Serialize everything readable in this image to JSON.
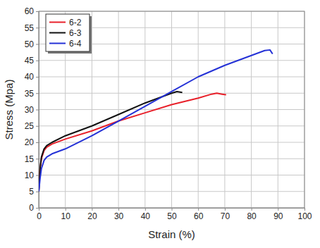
{
  "chart_data": {
    "type": "line",
    "x_label": "Strain (%)",
    "y_label": "Stress (Mpa)",
    "xlim": [
      0,
      100
    ],
    "ylim": [
      0,
      60
    ],
    "xticks": [
      0,
      10,
      20,
      30,
      40,
      50,
      60,
      70,
      80,
      90,
      100
    ],
    "yticks": [
      0,
      5,
      10,
      15,
      20,
      25,
      30,
      35,
      40,
      45,
      50,
      55,
      60
    ],
    "grid": true,
    "legend": "upper left",
    "series": [
      {
        "name": "6-2",
        "color": "#e8202a",
        "x": [
          0,
          0.5,
          1,
          2,
          3,
          5,
          10,
          20,
          30,
          40,
          50,
          60,
          65,
          67,
          69,
          70.5
        ],
        "values": [
          5,
          12,
          15,
          17.5,
          18.5,
          19.5,
          21,
          23.5,
          26.5,
          29,
          31.5,
          33.5,
          34.7,
          35,
          34.7,
          34.5
        ]
      },
      {
        "name": "6-3",
        "color": "#111111",
        "x": [
          0,
          0.5,
          1,
          2,
          3,
          5,
          10,
          20,
          30,
          40,
          50,
          52,
          54
        ],
        "values": [
          5,
          12,
          15.5,
          18,
          19,
          20,
          22,
          25,
          28.5,
          32,
          35,
          35.5,
          35.2
        ]
      },
      {
        "name": "6-4",
        "color": "#2431d6",
        "x": [
          0,
          0.5,
          1,
          2,
          3,
          5,
          10,
          20,
          30,
          40,
          50,
          60,
          70,
          80,
          85,
          87,
          88
        ],
        "values": [
          5,
          9,
          12,
          14.5,
          15.5,
          16.5,
          18,
          22,
          26.5,
          31,
          35.5,
          40,
          43.5,
          46.5,
          48,
          48.2,
          47
        ]
      }
    ]
  }
}
